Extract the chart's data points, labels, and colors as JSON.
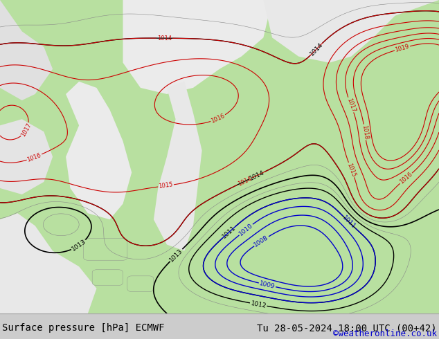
{
  "title_left": "Surface pressure [hPa] ECMWF",
  "title_right": "Tu 28-05-2024 18:00 UTC (00+42)",
  "credit": "©weatheronline.co.uk",
  "footer_bg": "#cccccc",
  "left_label_color": "#000000",
  "right_label_color": "#000000",
  "credit_color": "#0000cc",
  "label_fontsize": 10,
  "credit_fontsize": 9,
  "figsize": [
    6.34,
    4.9
  ],
  "dpi": 100,
  "land_color": "#b8e0a0",
  "sea_color": "#e8e8e8",
  "contour_black_color": "#000000",
  "contour_red_color": "#cc0000",
  "contour_blue_color": "#0000cc",
  "contour_gray_color": "#888888"
}
